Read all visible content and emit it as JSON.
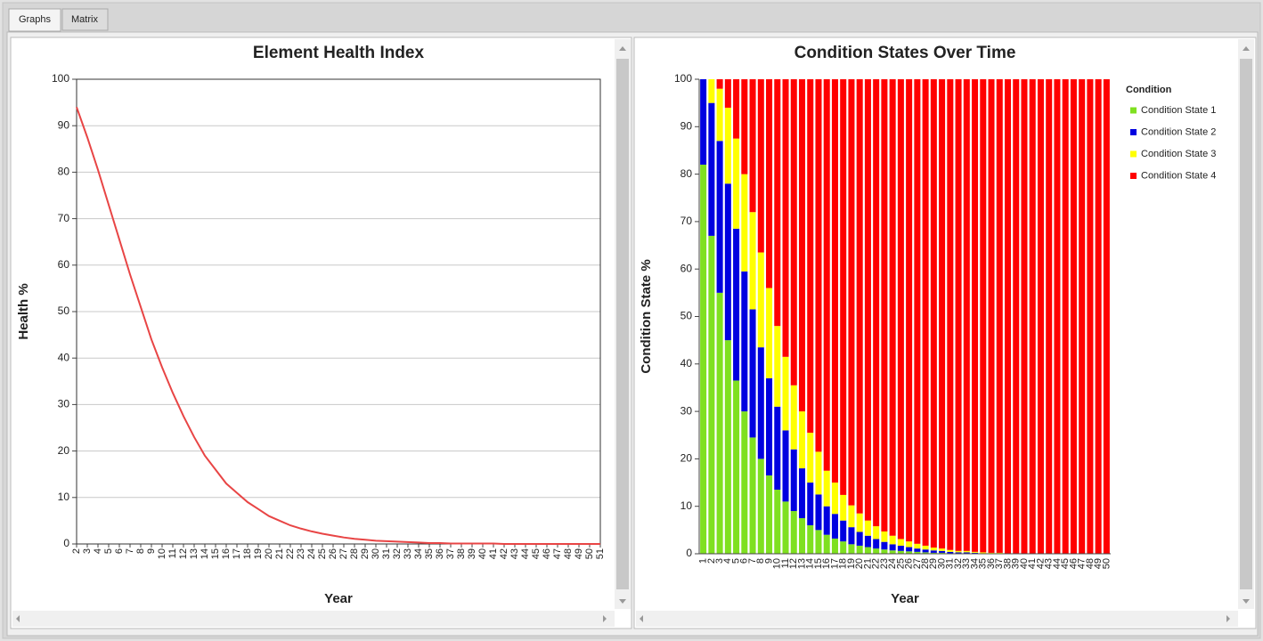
{
  "tabs": [
    "Graphs",
    "Matrix"
  ],
  "chart_data": [
    {
      "type": "line",
      "title": "Element Health Index",
      "ylabel": "Health %",
      "xlabel": "Year",
      "categories": [
        "2",
        "3",
        "4",
        "5",
        "6",
        "7",
        "8",
        "9",
        "10",
        "11",
        "12",
        "13",
        "14",
        "15",
        "16",
        "17",
        "18",
        "19",
        "20",
        "21",
        "22",
        "23",
        "24",
        "25",
        "26",
        "27",
        "28",
        "29",
        "30",
        "31",
        "32",
        "33",
        "34",
        "35",
        "36",
        "37",
        "38",
        "39",
        "40",
        "41",
        "42",
        "43",
        "44",
        "45",
        "46",
        "47",
        "48",
        "49",
        "50",
        "51"
      ],
      "values": [
        94,
        87.5,
        80.5,
        73,
        65.5,
        58,
        51,
        44,
        38,
        32.5,
        27.5,
        23,
        19,
        16,
        13,
        11,
        9,
        7.5,
        6,
        5,
        4,
        3.3,
        2.7,
        2.2,
        1.8,
        1.4,
        1.1,
        0.9,
        0.7,
        0.6,
        0.5,
        0.4,
        0.3,
        0.2,
        0.2,
        0.1,
        0.1,
        0.1,
        0.1,
        0.1,
        0,
        0,
        0,
        0,
        0,
        0,
        0,
        0,
        0,
        0
      ],
      "color": "#e84545",
      "ylim": [
        0,
        100
      ],
      "yticks": [
        0,
        10,
        20,
        30,
        40,
        50,
        60,
        70,
        80,
        90,
        100
      ],
      "grid": true
    },
    {
      "type": "stacked_bar",
      "title": "Condition States Over Time",
      "ylabel": "Condition State %",
      "xlabel": "Year",
      "legend_title": "Condition",
      "legend": "right",
      "categories": [
        "1",
        "2",
        "3",
        "4",
        "5",
        "6",
        "7",
        "8",
        "9",
        "10",
        "11",
        "12",
        "13",
        "14",
        "15",
        "16",
        "17",
        "18",
        "19",
        "20",
        "21",
        "22",
        "23",
        "24",
        "25",
        "26",
        "27",
        "28",
        "29",
        "30",
        "31",
        "32",
        "33",
        "34",
        "35",
        "36",
        "37",
        "38",
        "39",
        "40",
        "41",
        "42",
        "43",
        "44",
        "45",
        "46",
        "47",
        "48",
        "49",
        "50"
      ],
      "series": [
        {
          "name": "Condition State 1",
          "color": "#7fe020",
          "values": [
            82,
            67,
            55,
            45,
            36.5,
            30,
            24.5,
            20,
            16.5,
            13.5,
            11,
            9,
            7.5,
            6,
            5,
            4,
            3.2,
            2.6,
            2,
            1.7,
            1.4,
            1.1,
            0.9,
            0.7,
            0.6,
            0.5,
            0.4,
            0.3,
            0.2,
            0.2,
            0.1,
            0.1,
            0.1,
            0.1,
            0,
            0,
            0,
            0,
            0,
            0,
            0,
            0,
            0,
            0,
            0,
            0,
            0,
            0,
            0,
            0
          ]
        },
        {
          "name": "Condition State 2",
          "color": "#0000e0",
          "values": [
            18,
            28,
            32,
            33,
            32,
            29.5,
            27,
            23.5,
            20.5,
            17.5,
            15,
            13,
            10.5,
            9,
            7.5,
            6,
            5.2,
            4.4,
            3.6,
            2.9,
            2.4,
            2,
            1.6,
            1.3,
            1.1,
            0.9,
            0.7,
            0.6,
            0.5,
            0.4,
            0.3,
            0.2,
            0.2,
            0.1,
            0.1,
            0.1,
            0.1,
            0,
            0,
            0,
            0,
            0,
            0,
            0,
            0,
            0,
            0,
            0,
            0,
            0
          ]
        },
        {
          "name": "Condition State 3",
          "color": "#ffff00",
          "values": [
            0,
            5,
            11,
            16,
            19,
            20.5,
            20.5,
            20,
            19,
            17,
            15.5,
            13.5,
            12,
            10.5,
            9,
            7.5,
            6.6,
            5.4,
            4.6,
            3.9,
            3.2,
            2.7,
            2.2,
            1.8,
            1.4,
            1.2,
            1,
            0.8,
            0.6,
            0.5,
            0.4,
            0.3,
            0.3,
            0.2,
            0.2,
            0.1,
            0.1,
            0.1,
            0.1,
            0,
            0,
            0,
            0,
            0,
            0,
            0,
            0,
            0,
            0,
            0
          ]
        },
        {
          "name": "Condition State 4",
          "color": "#ff0000",
          "values": [
            0,
            0,
            2,
            6,
            12.5,
            20,
            28,
            36.5,
            44,
            52,
            58.5,
            64.5,
            70,
            74.5,
            78.5,
            82.5,
            85,
            87.6,
            89.8,
            91.5,
            93,
            94.2,
            95.3,
            96.2,
            96.9,
            97.4,
            97.9,
            98.3,
            98.7,
            98.9,
            99.2,
            99.4,
            99.4,
            99.6,
            99.7,
            99.8,
            99.8,
            99.9,
            99.9,
            100,
            100,
            100,
            100,
            100,
            100,
            100,
            100,
            100,
            100,
            100
          ]
        }
      ],
      "ylim": [
        0,
        100
      ],
      "yticks": [
        0,
        10,
        20,
        30,
        40,
        50,
        60,
        70,
        80,
        90,
        100
      ],
      "grid": false
    }
  ]
}
